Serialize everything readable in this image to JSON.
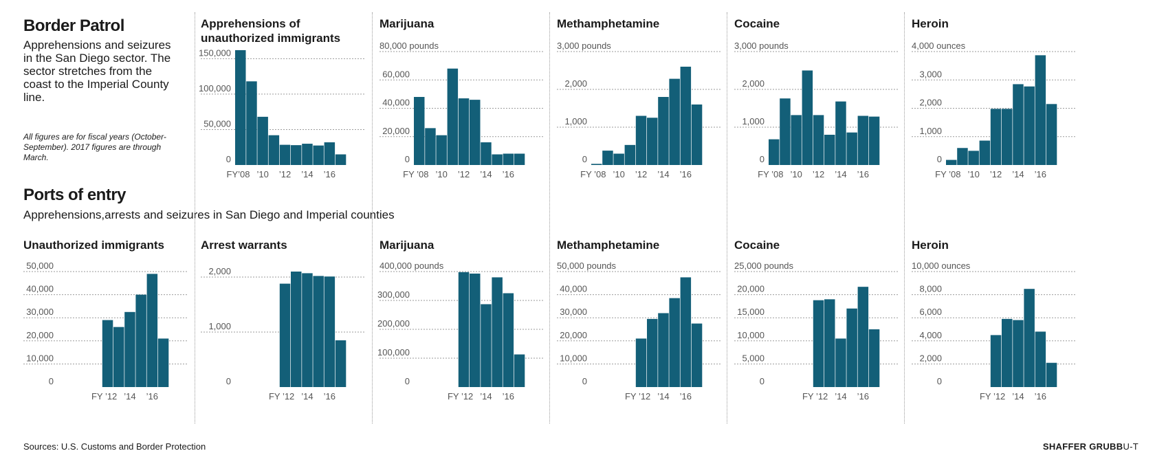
{
  "border_patrol": {
    "title": "Border Patrol",
    "description": "Apprehensions and seizures in the San Diego sector.  The sector stretches from the coast to the Imperial County line.",
    "note": "All figures are for fiscal years (October-September). 2017 figures are through March."
  },
  "ports_of_entry": {
    "title": "Ports of entry",
    "description": "Apprehensions,arrests and seizures in San Diego and Imperial counties"
  },
  "footer": {
    "sources": "Sources: U.S. Customs and Border Protection",
    "credit": "SHAFFER GRUBB",
    "credit_suffix": "U-T"
  },
  "colors": {
    "bar": "#135f78",
    "grid": "#9a9a9a",
    "text": "#555555"
  },
  "chart_data": [
    {
      "id": "bp-immigrants",
      "type": "bar",
      "title": "Apprehensions of unauthorized immigrants",
      "unit": "",
      "ylim": [
        0,
        160000
      ],
      "yticks": [
        0,
        50000,
        100000,
        150000
      ],
      "ytick_labels": [
        "0",
        "50,000",
        "100,000",
        "150,000"
      ],
      "categories": [
        "2008",
        "2009",
        "2010",
        "2011",
        "2012",
        "2013",
        "2014",
        "2015",
        "2016",
        "2017"
      ],
      "values": [
        162000,
        118000,
        68000,
        42000,
        28500,
        28000,
        30000,
        27500,
        32000,
        15000
      ],
      "x_tick_labels": [
        "FY’08",
        "’10",
        "’12",
        "’14",
        "’16"
      ]
    },
    {
      "id": "bp-marijuana",
      "type": "bar",
      "title": "Marijuana",
      "unit": "80,000 pounds",
      "ylim": [
        0,
        80000
      ],
      "yticks": [
        0,
        20000,
        40000,
        60000,
        80000
      ],
      "ytick_labels": [
        "0",
        "20,000",
        "40,000",
        "60,000",
        ""
      ],
      "categories": [
        "2008",
        "2009",
        "2010",
        "2011",
        "2012",
        "2013",
        "2014",
        "2015",
        "2016",
        "2017"
      ],
      "values": [
        48000,
        26000,
        21000,
        68000,
        47000,
        46000,
        16000,
        7500,
        8000,
        8000
      ],
      "x_tick_labels": [
        "FY ’08",
        "’10",
        "’12",
        "’14",
        "’16"
      ]
    },
    {
      "id": "bp-meth",
      "type": "bar",
      "title": "Methamphetamine",
      "unit": "3,000 pounds",
      "ylim": [
        0,
        3000
      ],
      "yticks": [
        0,
        1000,
        2000,
        3000
      ],
      "ytick_labels": [
        "0",
        "1,000",
        "2,000",
        ""
      ],
      "categories": [
        "2008",
        "2009",
        "2010",
        "2011",
        "2012",
        "2013",
        "2014",
        "2015",
        "2016",
        "2017"
      ],
      "values": [
        30,
        380,
        300,
        530,
        1300,
        1250,
        1800,
        2280,
        2600,
        1600
      ],
      "x_tick_labels": [
        "FY ’08",
        "’10",
        "’12",
        "’14",
        "’16"
      ]
    },
    {
      "id": "bp-cocaine",
      "type": "bar",
      "title": "Cocaine",
      "unit": "3,000 pounds",
      "ylim": [
        0,
        3000
      ],
      "yticks": [
        0,
        1000,
        2000,
        3000
      ],
      "ytick_labels": [
        "0",
        "1,000",
        "2,000",
        ""
      ],
      "categories": [
        "2008",
        "2009",
        "2010",
        "2011",
        "2012",
        "2013",
        "2014",
        "2015",
        "2016",
        "2017"
      ],
      "values": [
        680,
        1760,
        1320,
        2500,
        1320,
        800,
        1680,
        860,
        1300,
        1280
      ],
      "x_tick_labels": [
        "FY ’08",
        "’10",
        "’12",
        "’14",
        "’16"
      ]
    },
    {
      "id": "bp-heroin",
      "type": "bar",
      "title": "Heroin",
      "unit": "4,000 ounces",
      "ylim": [
        0,
        4000
      ],
      "yticks": [
        0,
        1000,
        2000,
        3000,
        4000
      ],
      "ytick_labels": [
        "0",
        "1,000",
        "2,000",
        "3,000",
        ""
      ],
      "categories": [
        "2008",
        "2009",
        "2010",
        "2011",
        "2012",
        "2013",
        "2014",
        "2015",
        "2016",
        "2017"
      ],
      "values": [
        180,
        600,
        500,
        860,
        1980,
        1980,
        2850,
        2770,
        3870,
        2150
      ],
      "x_tick_labels": [
        "FY ’08",
        "’10",
        "’12",
        "’14",
        "’16"
      ]
    },
    {
      "id": "poe-immigrants",
      "type": "bar",
      "title": "Unauthorized immigrants",
      "unit": "",
      "ylim": [
        0,
        50000
      ],
      "yticks": [
        0,
        10000,
        20000,
        30000,
        40000,
        50000
      ],
      "ytick_labels": [
        "0",
        "10,000",
        "20,000",
        "30,000",
        "40,000",
        "50,000"
      ],
      "categories": [
        "2008",
        "2009",
        "2010",
        "2011",
        "2012",
        "2013",
        "2014",
        "2015",
        "2016",
        "2017"
      ],
      "values": [
        null,
        null,
        null,
        null,
        29000,
        26000,
        32500,
        40000,
        49000,
        21000
      ],
      "x_tick_labels": [
        "FY ’12",
        "’14",
        "’16"
      ]
    },
    {
      "id": "poe-warrants",
      "type": "bar",
      "title": "Arrest warrants",
      "unit": "",
      "ylim": [
        0,
        2100
      ],
      "yticks": [
        0,
        1000,
        2000
      ],
      "ytick_labels": [
        "0",
        "1,000",
        "2,000"
      ],
      "categories": [
        "2008",
        "2009",
        "2010",
        "2011",
        "2012",
        "2013",
        "2014",
        "2015",
        "2016",
        "2017"
      ],
      "values": [
        null,
        null,
        null,
        null,
        1880,
        2100,
        2070,
        2020,
        2010,
        850
      ],
      "x_tick_labels": [
        "FY ’12",
        "’14",
        "’16"
      ]
    },
    {
      "id": "poe-marijuana",
      "type": "bar",
      "title": "Marijuana",
      "unit": "400,000 pounds",
      "ylim": [
        0,
        400000
      ],
      "yticks": [
        0,
        100000,
        200000,
        300000,
        400000
      ],
      "ytick_labels": [
        "0",
        "100,000",
        "200,000",
        "300,000",
        ""
      ],
      "categories": [
        "2008",
        "2009",
        "2010",
        "2011",
        "2012",
        "2013",
        "2014",
        "2015",
        "2016",
        "2017"
      ],
      "values": [
        null,
        null,
        null,
        null,
        398000,
        393000,
        287000,
        380000,
        325000,
        113000
      ],
      "x_tick_labels": [
        "FY ’12",
        "’14",
        "’16"
      ]
    },
    {
      "id": "poe-meth",
      "type": "bar",
      "title": "Methamphetamine",
      "unit": "50,000 pounds",
      "ylim": [
        0,
        50000
      ],
      "yticks": [
        0,
        10000,
        20000,
        30000,
        40000,
        50000
      ],
      "ytick_labels": [
        "0",
        "10,000",
        "20,000",
        "30,000",
        "40,000",
        ""
      ],
      "categories": [
        "2008",
        "2009",
        "2010",
        "2011",
        "2012",
        "2013",
        "2014",
        "2015",
        "2016",
        "2017"
      ],
      "values": [
        null,
        null,
        null,
        null,
        21000,
        29500,
        32000,
        38500,
        47500,
        27500
      ],
      "x_tick_labels": [
        "FY ’12",
        "’14",
        "’16"
      ]
    },
    {
      "id": "poe-cocaine",
      "type": "bar",
      "title": "Cocaine",
      "unit": "25,000 pounds",
      "ylim": [
        0,
        25000
      ],
      "yticks": [
        0,
        5000,
        10000,
        15000,
        20000,
        25000
      ],
      "ytick_labels": [
        "0",
        "5,000",
        "10,000",
        "15,000",
        "20,000",
        ""
      ],
      "categories": [
        "2008",
        "2009",
        "2010",
        "2011",
        "2012",
        "2013",
        "2014",
        "2015",
        "2016",
        "2017"
      ],
      "values": [
        null,
        null,
        null,
        null,
        18800,
        19000,
        10500,
        17000,
        21700,
        12500
      ],
      "x_tick_labels": [
        "FY ’12",
        "’14",
        "’16"
      ]
    },
    {
      "id": "poe-heroin",
      "type": "bar",
      "title": "Heroin",
      "unit": "10,000 ounces",
      "ylim": [
        0,
        10000
      ],
      "yticks": [
        0,
        2000,
        4000,
        6000,
        8000,
        10000
      ],
      "ytick_labels": [
        "0",
        "2,000",
        "4,000",
        "6,000",
        "8,000",
        ""
      ],
      "categories": [
        "2008",
        "2009",
        "2010",
        "2011",
        "2012",
        "2013",
        "2014",
        "2015",
        "2016",
        "2017"
      ],
      "values": [
        null,
        null,
        null,
        null,
        4500,
        5900,
        5800,
        8500,
        4800,
        2100
      ],
      "x_tick_labels": [
        "FY ’12",
        "’14",
        "’16"
      ]
    }
  ]
}
